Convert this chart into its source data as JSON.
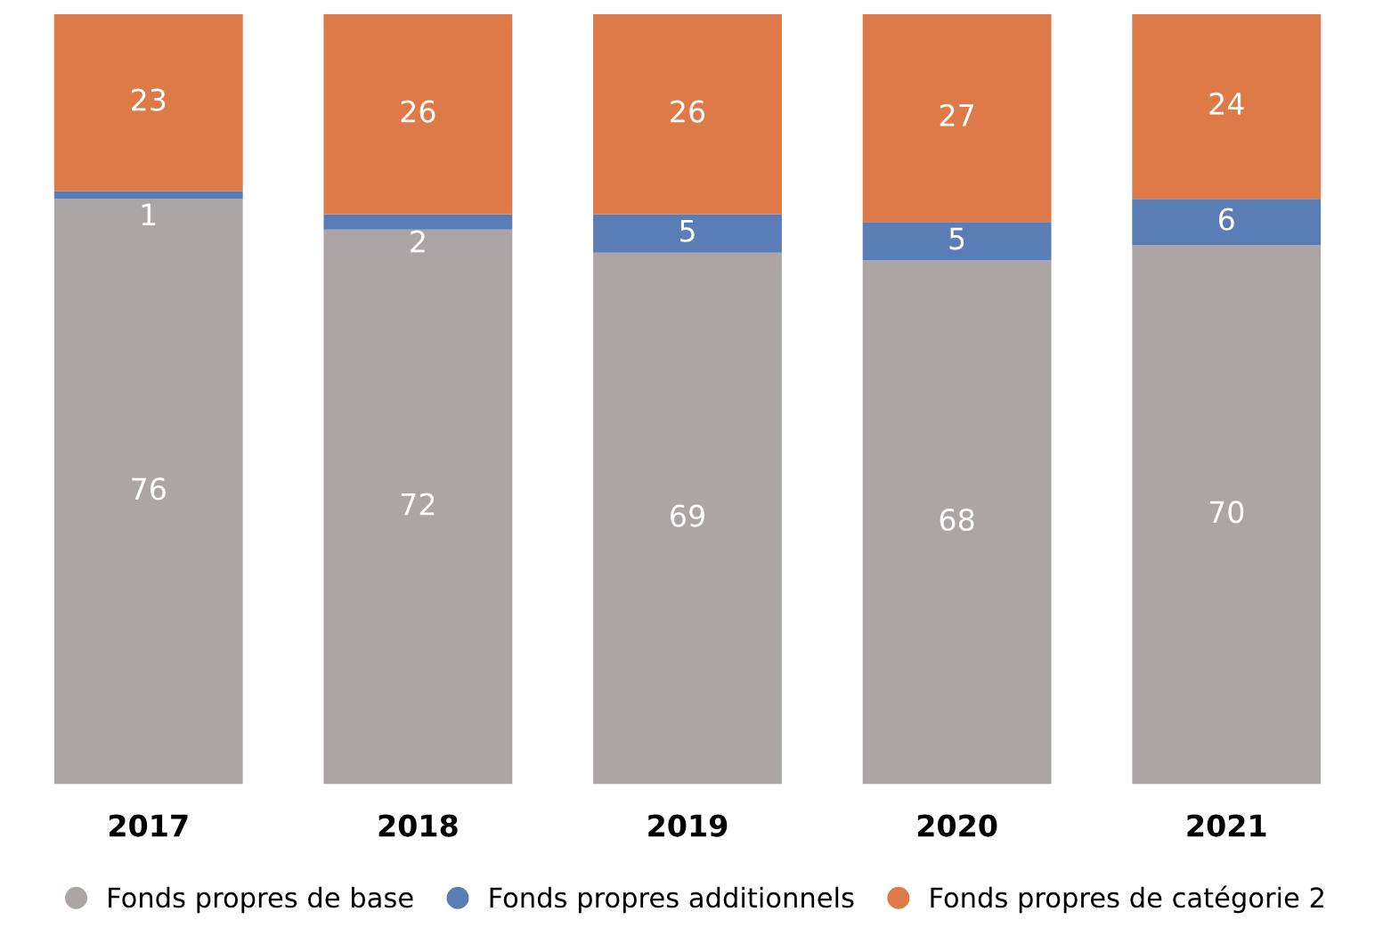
{
  "chart_data": {
    "type": "bar",
    "stacked": true,
    "data_labels": true,
    "legend": "bottom",
    "grid": false,
    "marker": "circle",
    "categories": [
      "2017",
      "2018",
      "2019",
      "2020",
      "2021"
    ],
    "series": [
      {
        "name": "Fonds propres de base",
        "color": "#aba5a5",
        "values": [
          76,
          72,
          69,
          68,
          70
        ]
      },
      {
        "name": "Fonds propres additionnels",
        "color": "#5a7db5",
        "values": [
          1,
          2,
          5,
          5,
          6
        ]
      },
      {
        "name": "Fonds propres de catégorie 2",
        "color": "#dd7a48",
        "values": [
          23,
          26,
          26,
          27,
          24
        ]
      }
    ]
  }
}
